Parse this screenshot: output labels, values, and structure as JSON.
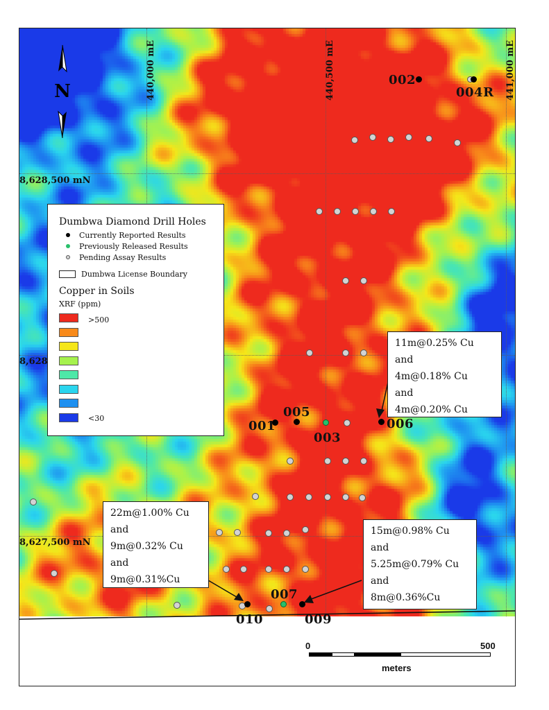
{
  "colors": {
    "ramp": [
      "#ee2a1e",
      "#f88a1a",
      "#f5e619",
      "#a6f24d",
      "#4ee8a8",
      "#2ad5ee",
      "#1e90f0",
      "#1a3ae8"
    ]
  },
  "grid": {
    "easting_labels": [
      "440,000 mE",
      "440,500 mE",
      "441,000 mE"
    ],
    "northing_labels": [
      "8,628,500 mN",
      "8,628",
      "8,627,500 mN"
    ]
  },
  "north_arrow": {
    "label": "N"
  },
  "legend": {
    "title": "Dumbwa Diamond Drill Holes",
    "items": [
      {
        "label": "Currently Reported Results",
        "color": "#000000"
      },
      {
        "label": "Previously Released Results",
        "color": "#29c06b"
      },
      {
        "label": "Pending Assay Results",
        "color": "#d3d3d3"
      },
      {
        "label": "Dumbwa License Boundary",
        "color": "#ffffff"
      }
    ],
    "soils_title": "Copper in Soils",
    "soils_subtitle": "XRF (ppm)",
    "high_label": ">500",
    "low_label": "<30"
  },
  "holes": [
    {
      "id": "002",
      "type": "black"
    },
    {
      "id": "004R",
      "type": "black"
    },
    {
      "id": "001",
      "type": "black"
    },
    {
      "id": "005",
      "type": "black"
    },
    {
      "id": "003",
      "type": "green"
    },
    {
      "id": "006",
      "type": "black"
    },
    {
      "id": "010",
      "type": "black"
    },
    {
      "id": "007",
      "type": "green"
    },
    {
      "id": "009",
      "type": "black"
    }
  ],
  "callouts": [
    {
      "lines": [
        "11m@0.25% Cu",
        "and",
        "4m@0.18% Cu",
        "and",
        "4m@0.20% Cu"
      ]
    },
    {
      "lines": [
        "22m@1.00% Cu",
        "and",
        "9m@0.32% Cu",
        "and",
        "9m@0.31%Cu"
      ]
    },
    {
      "lines": [
        "15m@0.98% Cu",
        "and",
        "5.25m@0.79% Cu",
        "and",
        "8m@0.36%Cu"
      ]
    }
  ],
  "scale": {
    "zero": "0",
    "max": "500",
    "unit": "meters"
  }
}
